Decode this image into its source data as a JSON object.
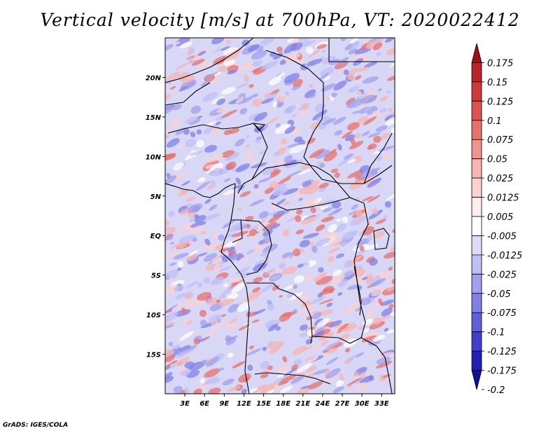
{
  "title": "Vertical velocity [m/s] at 700hPa, VT: 2020022412",
  "footer": "GrADS: IGES/COLA",
  "map": {
    "lon_range": [
      0,
      35
    ],
    "lat_range": [
      -20,
      25
    ],
    "lat_ticks": [
      {
        "value": 20,
        "label": "20N"
      },
      {
        "value": 15,
        "label": "15N"
      },
      {
        "value": 10,
        "label": "10N"
      },
      {
        "value": 5,
        "label": "5N"
      },
      {
        "value": 0,
        "label": "EQ"
      },
      {
        "value": -5,
        "label": "5S"
      },
      {
        "value": -10,
        "label": "10S"
      },
      {
        "value": -15,
        "label": "15S"
      }
    ],
    "lon_ticks": [
      {
        "value": 3,
        "label": "3E"
      },
      {
        "value": 6,
        "label": "6E"
      },
      {
        "value": 9,
        "label": "9E"
      },
      {
        "value": 12,
        "label": "12E"
      },
      {
        "value": 15,
        "label": "15E"
      },
      {
        "value": 18,
        "label": "18E"
      },
      {
        "value": 21,
        "label": "21E"
      },
      {
        "value": 24,
        "label": "24E"
      },
      {
        "value": 27,
        "label": "27E"
      },
      {
        "value": 30,
        "label": "30E"
      },
      {
        "value": 33,
        "label": "33E"
      }
    ]
  },
  "colorbar": {
    "labels": [
      "0.175",
      "0.15",
      "0.125",
      "0.1",
      "0.075",
      "0.05",
      "0.025",
      "0.0125",
      "0.005",
      "-0.005",
      "-0.0125",
      "-0.025",
      "-0.05",
      "-0.075",
      "-0.1",
      "-0.125",
      "-0.175",
      "-0.2"
    ],
    "colors": [
      "#a01018",
      "#b8242a",
      "#cc3a3c",
      "#dc5452",
      "#e8716c",
      "#f09490",
      "#f7b5b2",
      "#fcd2d0",
      "#ffeeed",
      "#ffffff",
      "#dcdcfa",
      "#bfbff5",
      "#a0a0ee",
      "#8080e6",
      "#6060dc",
      "#4040cc",
      "#2020b4",
      "#101098"
    ]
  }
}
